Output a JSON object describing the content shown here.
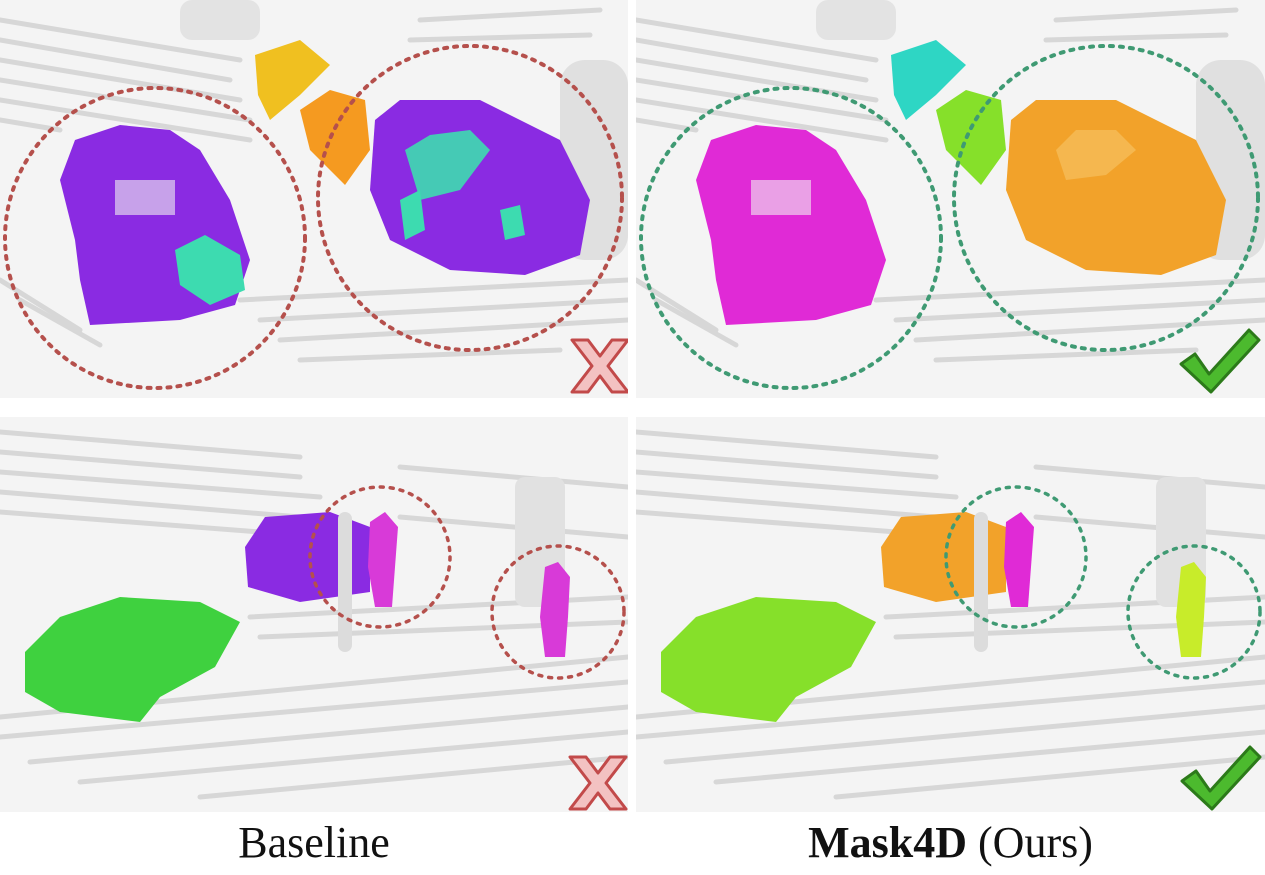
{
  "figure": {
    "columns": [
      {
        "caption_bold": "",
        "caption_rest": "Baseline",
        "verdict": "fail"
      },
      {
        "caption_bold": "Mask4D",
        "caption_rest": " (Ours)",
        "verdict": "success"
      }
    ]
  },
  "colors": {
    "background_points": "#e6e6e6",
    "baseline_car": "#8a2be2",
    "baseline_fragment": "#3ddbb0",
    "baseline_yellow": "#f0c020",
    "baseline_orange": "#f59a20",
    "baseline_green": "#3fd13f",
    "baseline_person": "#d83ad8",
    "ours_magenta": "#e02ad6",
    "ours_orange": "#f2a22a",
    "ours_cyan": "#2ed6c4",
    "ours_lime": "#86e02a",
    "ours_yellowgreen": "#c8ec2a",
    "fail_circle": "#b5504c",
    "success_circle": "#3f9a73",
    "cross_mark": "#e8a0a0",
    "check_mark": "#3fa82a"
  },
  "icons": {
    "fail": "cross-mark-icon",
    "success": "check-mark-icon"
  }
}
